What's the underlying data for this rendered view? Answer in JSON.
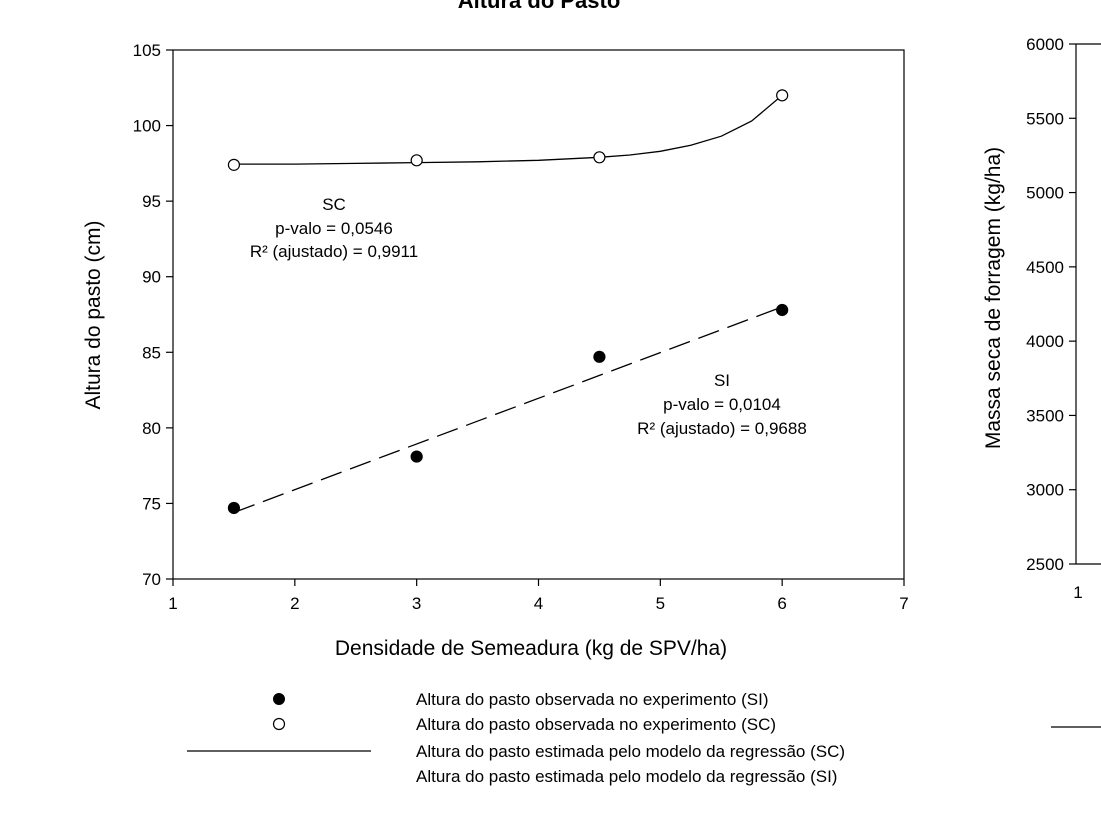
{
  "chart_data": [
    {
      "type": "scatter",
      "title": "Altura do Pasto",
      "xlabel": "Densidade de Semeadura (kg de SPV/ha)",
      "ylabel": "Altura do pasto (cm)",
      "xlim": [
        1,
        7
      ],
      "ylim": [
        70,
        105
      ],
      "x_ticks": [
        "1",
        "2",
        "3",
        "4",
        "5",
        "6",
        "7"
      ],
      "y_ticks": [
        "70",
        "75",
        "80",
        "85",
        "90",
        "95",
        "100",
        "105"
      ],
      "grid": false,
      "series": [
        {
          "name": "SI",
          "marker": "filled-circle",
          "x": [
            1.5,
            3.0,
            4.5,
            6.0
          ],
          "y": [
            74.7,
            78.1,
            84.7,
            87.8
          ]
        },
        {
          "name": "SC",
          "marker": "open-circle",
          "x": [
            1.5,
            3.0,
            4.5,
            6.0
          ],
          "y": [
            97.4,
            97.7,
            97.9,
            102.0
          ]
        }
      ],
      "fits": [
        {
          "series": "SC",
          "style": "solid",
          "x": [
            1.5,
            2.0,
            2.5,
            3.0,
            3.5,
            4.0,
            4.5,
            4.75,
            5.0,
            5.25,
            5.5,
            5.75,
            6.0
          ],
          "y": [
            97.45,
            97.45,
            97.5,
            97.55,
            97.6,
            97.7,
            97.9,
            98.05,
            98.3,
            98.7,
            99.3,
            100.3,
            102.0
          ]
        },
        {
          "series": "SI",
          "style": "dashed",
          "x": [
            1.5,
            6.0
          ],
          "y": [
            74.4,
            88.0
          ]
        }
      ],
      "annotations": [
        {
          "lines": [
            "SC",
            "p-valo = 0,0546",
            "R² (ajustado) = 0,9911"
          ]
        },
        {
          "lines": [
            "SI",
            "p-valo = 0,0104",
            "R² (ajustado) = 0,9688"
          ]
        }
      ],
      "legend": {
        "placement": "bottom",
        "entries": [
          "Altura do pasto observada no experimento (SI)",
          "Altura do pasto observada no experimento (SC)",
          "Altura do pasto estimada pelo modelo da regressão (SC)",
          "Altura do pasto estimada pelo modelo da regressão (SI)"
        ]
      }
    },
    {
      "type": "scatter",
      "title": "",
      "xlabel": "",
      "ylabel": "Massa seca de forragem (kg/ha)",
      "ylim": [
        2500,
        6000
      ],
      "x_ticks": [
        "1"
      ],
      "y_ticks": [
        "2500",
        "3000",
        "3500",
        "4000",
        "4500",
        "5000",
        "5500",
        "6000"
      ],
      "grid": false
    }
  ]
}
